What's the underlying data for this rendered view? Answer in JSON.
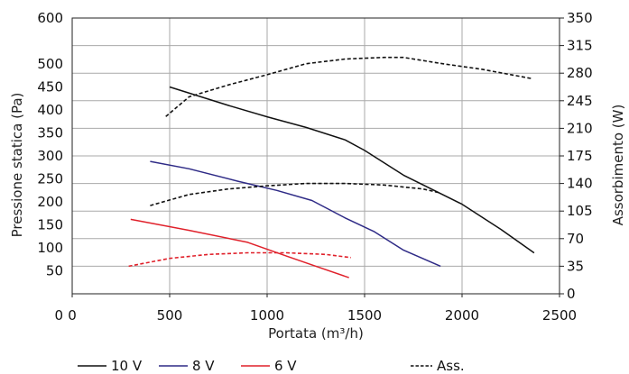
{
  "chart_data": {
    "type": "line",
    "title": "",
    "xlabel": "Portata (m³/h)",
    "ylabel": "Pressione statica (Pa)",
    "y2label": "Assorbimento (W)",
    "xlim": [
      0,
      2500
    ],
    "ylim": [
      0,
      600
    ],
    "y2lim": [
      0,
      350
    ],
    "grid": true,
    "x_ticks": [
      "0",
      "500",
      "1000",
      "1500",
      "2000",
      "2500"
    ],
    "x_tick_values": [
      0,
      500,
      1000,
      1500,
      2000,
      2500
    ],
    "y_ticks": [
      "50",
      "100",
      "150",
      "200",
      "250",
      "300",
      "350",
      "400",
      "450",
      "500",
      "600"
    ],
    "y_tick_values": [
      50,
      100,
      150,
      200,
      250,
      300,
      350,
      400,
      450,
      500,
      600
    ],
    "y2_ticks": [
      "0",
      "35",
      "70",
      "105",
      "140",
      "175",
      "210",
      "245",
      "280",
      "315",
      "350"
    ],
    "y2_tick_values": [
      0,
      35,
      70,
      105,
      140,
      175,
      210,
      245,
      280,
      315,
      350
    ],
    "legend": {
      "placement": "bottom",
      "entries": [
        {
          "label": "10 V",
          "color": "#111111",
          "style": "solid"
        },
        {
          "label": "8 V",
          "color": "#2e2a86",
          "style": "solid"
        },
        {
          "label": "6 V",
          "color": "#e0202a",
          "style": "solid"
        },
        {
          "label": "Ass.",
          "color": "#111111",
          "style": "dashed"
        }
      ]
    },
    "series": [
      {
        "name": "10 V",
        "axis": "left",
        "style": "solid",
        "color": "#111111",
        "x": [
          500,
          800,
          1000,
          1200,
          1400,
          1500,
          1700,
          2000,
          2200,
          2370
        ],
        "y": [
          450,
          410,
          385,
          362,
          335,
          312,
          258,
          195,
          140,
          89
        ]
      },
      {
        "name": "8 V",
        "axis": "left",
        "style": "solid",
        "color": "#2e2a86",
        "x": [
          400,
          600,
          850,
          1050,
          1230,
          1400,
          1550,
          1700,
          1890
        ],
        "y": [
          288,
          272,
          245,
          225,
          203,
          165,
          135,
          95,
          60
        ]
      },
      {
        "name": "6 V",
        "axis": "left",
        "style": "solid",
        "color": "#e0202a",
        "x": [
          300,
          600,
          900,
          1100,
          1250,
          1420
        ],
        "y": [
          162,
          138,
          112,
          82,
          60,
          35
        ]
      },
      {
        "name": "Ass. 10 V",
        "axis": "right",
        "style": "dashed",
        "color": "#111111",
        "x": [
          480,
          600,
          800,
          1000,
          1200,
          1400,
          1600,
          1700,
          1900,
          2100,
          2360
        ],
        "y": [
          225,
          250,
          265,
          278,
          292,
          298,
          300,
          300,
          292,
          285,
          273
        ]
      },
      {
        "name": "Ass. 8 V",
        "axis": "right",
        "style": "dashed",
        "color": "#111111",
        "x": [
          400,
          600,
          800,
          1000,
          1200,
          1400,
          1600,
          1800,
          1890
        ],
        "y": [
          112,
          126,
          133,
          137,
          140,
          140,
          138,
          133,
          128
        ]
      },
      {
        "name": "Ass. 6 V",
        "axis": "right",
        "style": "dashed",
        "color": "#e0202a",
        "x": [
          290,
          500,
          700,
          900,
          1100,
          1300,
          1430
        ],
        "y": [
          35,
          45,
          50,
          52,
          52,
          50,
          46
        ]
      }
    ]
  }
}
